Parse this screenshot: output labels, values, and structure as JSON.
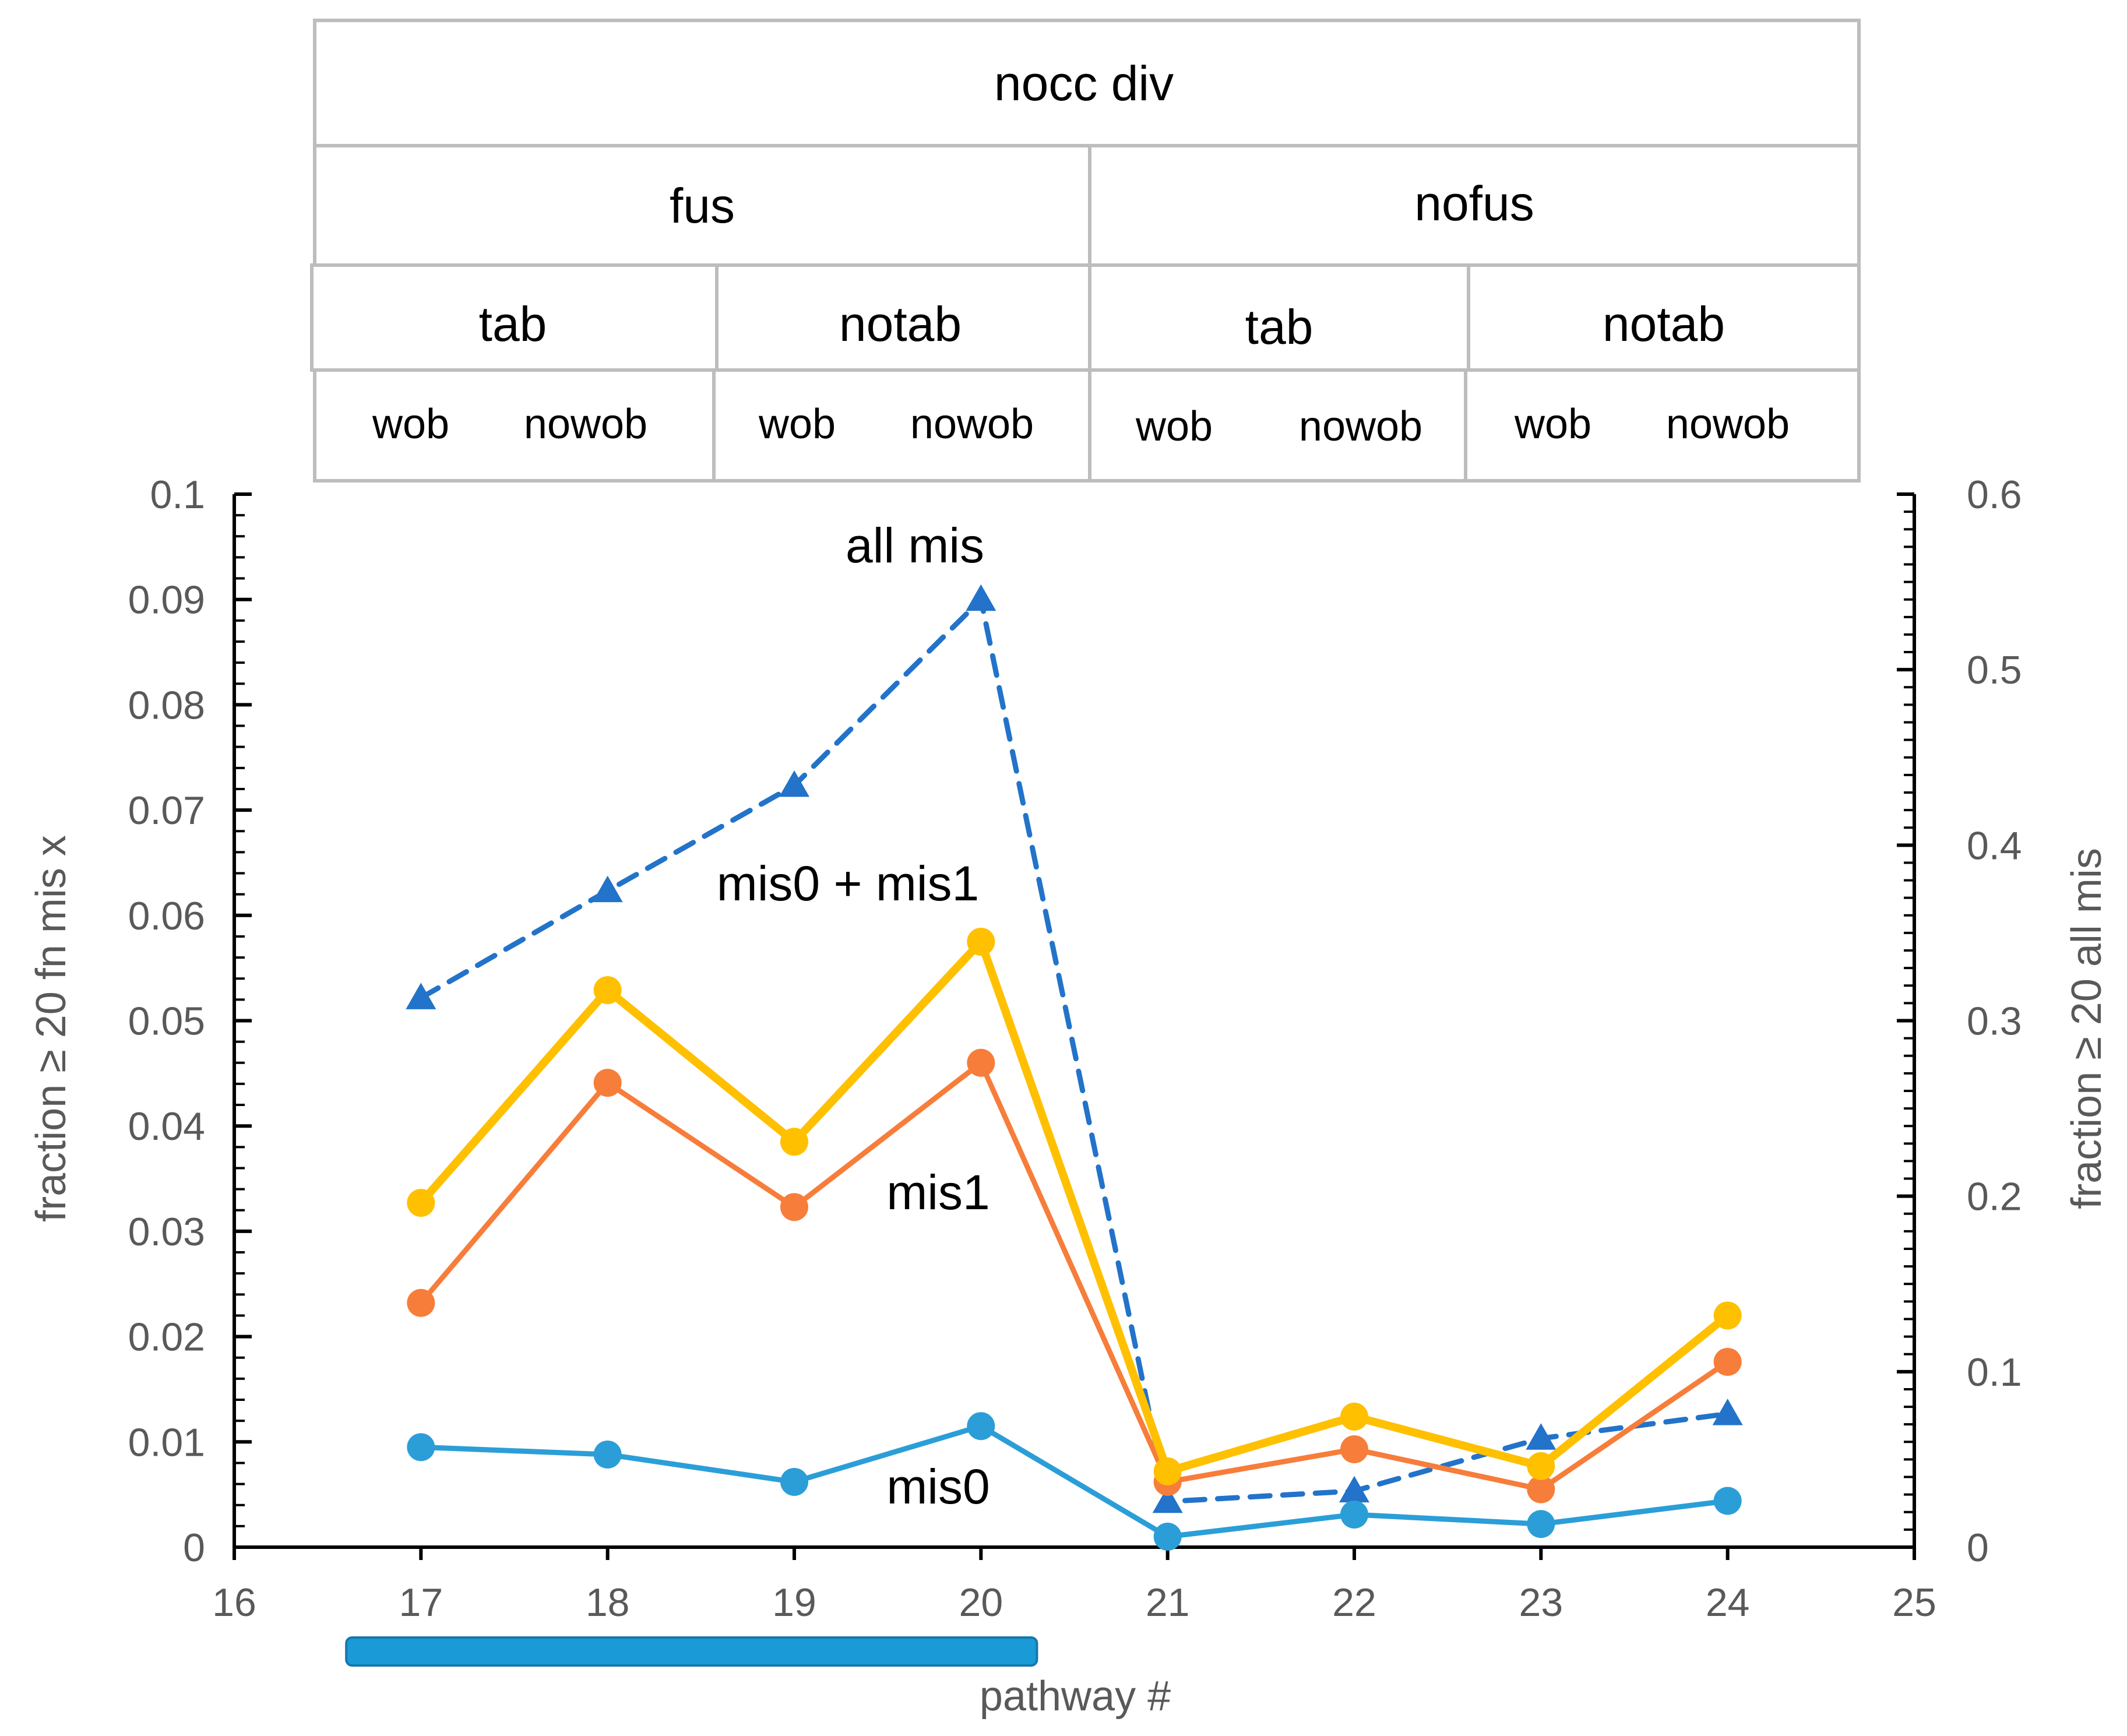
{
  "header_table": {
    "level1": [
      "nocc div"
    ],
    "level2": [
      "fus",
      "nofus"
    ],
    "level3": [
      "tab",
      "notab",
      "tab",
      "notab"
    ],
    "level4": [
      "wob",
      "nowob",
      "wob",
      "nowob",
      "wob",
      "nowob",
      "wob",
      "nowob"
    ]
  },
  "chart_data": {
    "type": "line",
    "xlabel": "pathway #",
    "ylabel_left": "fraction ≥ 20 fn mis x",
    "ylabel_right": "fraction ≥ 20 all mis",
    "x_ticks": [
      "16",
      "17",
      "18",
      "19",
      "20",
      "21",
      "22",
      "23",
      "24",
      "25"
    ],
    "y_left_ticks": [
      "0",
      "0.01",
      "0.02",
      "0.03",
      "0.04",
      "0.05",
      "0.06",
      "0.07",
      "0.08",
      "0.09",
      "0.1"
    ],
    "y_right_ticks": [
      "0",
      "0.1",
      "0.2",
      "0.3",
      "0.4",
      "0.5",
      "0.6"
    ],
    "xlim": [
      16,
      25
    ],
    "ylim_left": [
      0,
      0.1
    ],
    "ylim_right": [
      0,
      0.6
    ],
    "x": [
      17,
      18,
      19,
      20,
      21,
      22,
      23,
      24
    ],
    "series": [
      {
        "name": "mis0",
        "axis": "left",
        "color": "#2b9ed8",
        "marker": "circle",
        "dash": false,
        "values": [
          0.0095,
          0.0088,
          0.0062,
          0.0115,
          0.001,
          0.0031,
          0.0022,
          0.0044
        ]
      },
      {
        "name": "mis1",
        "axis": "left",
        "color": "#f77d3a",
        "marker": "circle",
        "dash": false,
        "values": [
          0.0232,
          0.0441,
          0.0323,
          0.046,
          0.0062,
          0.0093,
          0.0055,
          0.0176
        ]
      },
      {
        "name": "mis0 + mis1",
        "axis": "left",
        "color": "#ffc000",
        "marker": "circle",
        "dash": false,
        "values": [
          0.0327,
          0.0529,
          0.0385,
          0.0575,
          0.0072,
          0.0124,
          0.0077,
          0.022
        ]
      },
      {
        "name": "all mis",
        "axis": "right",
        "color": "#2273c9",
        "marker": "triangle",
        "dash": true,
        "values": [
          0.313,
          0.374,
          0.434,
          0.54,
          0.026,
          0.032,
          0.062,
          0.076
        ]
      }
    ],
    "annotations": [
      "all mis",
      "mis0 + mis1",
      "mis1",
      "mis0"
    ],
    "pathway_bar": {
      "from": 16.6,
      "to": 20.3,
      "color": "#1a9ad6"
    }
  }
}
